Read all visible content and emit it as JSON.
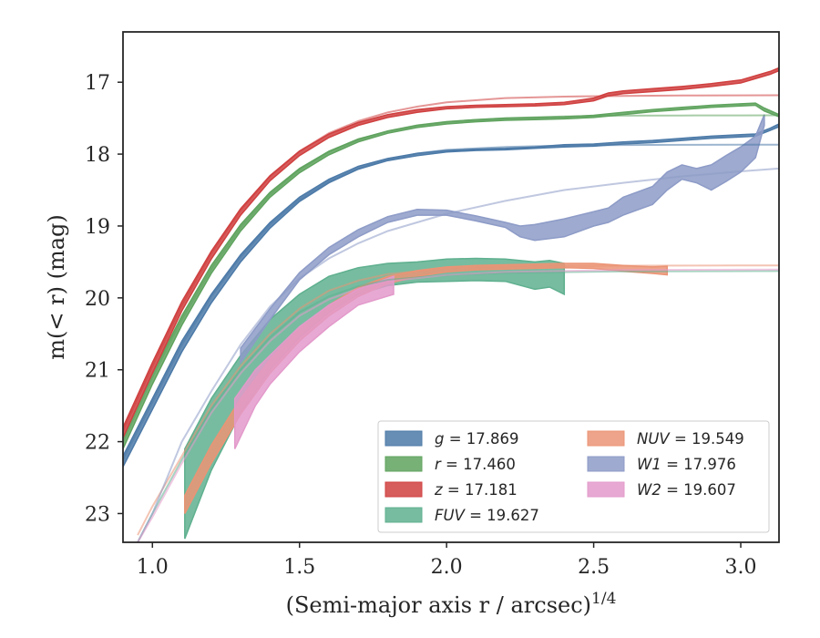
{
  "chart_data": {
    "type": "line",
    "xlabel": "(Semi-major axis r / arcsec)",
    "xlabel_exponent": "1/4",
    "ylabel": "m(< r) (mag)",
    "xlim": [
      0.9,
      3.13
    ],
    "ylim": [
      23.4,
      16.3
    ],
    "y_inverted": true,
    "xticks": [
      1.0,
      1.5,
      2.0,
      2.5,
      3.0
    ],
    "xtick_labels": [
      "1.0",
      "1.5",
      "2.0",
      "2.5",
      "3.0"
    ],
    "yticks": [
      17,
      18,
      19,
      20,
      21,
      22,
      23
    ],
    "ytick_labels": [
      "17",
      "18",
      "19",
      "20",
      "21",
      "22",
      "23"
    ],
    "grid": false,
    "legend_position": "lower-right",
    "legend_columns": 2,
    "series": [
      {
        "name": "g = 17.869",
        "color": "#4c7aa8",
        "band_x": [
          0.9,
          1.0,
          1.1,
          1.2,
          1.3,
          1.4,
          1.5,
          1.6,
          1.7,
          1.8,
          1.9,
          2.0,
          2.1,
          2.2,
          2.3,
          2.4,
          2.5,
          2.6,
          2.7,
          2.8,
          2.9,
          3.0,
          3.05,
          3.1,
          3.13
        ],
        "band_upper": [
          22.2,
          21.4,
          20.6,
          19.95,
          19.4,
          18.95,
          18.6,
          18.35,
          18.17,
          18.06,
          17.99,
          17.95,
          17.93,
          17.92,
          17.9,
          17.87,
          17.86,
          17.83,
          17.81,
          17.78,
          17.75,
          17.73,
          17.72,
          17.64,
          17.58
        ],
        "band_lower": [
          22.35,
          21.55,
          20.75,
          20.07,
          19.5,
          19.03,
          18.66,
          18.4,
          18.21,
          18.09,
          18.02,
          17.97,
          17.95,
          17.94,
          17.92,
          17.9,
          17.89,
          17.86,
          17.84,
          17.81,
          17.78,
          17.76,
          17.75,
          17.67,
          17.62
        ],
        "model_x": [
          0.9,
          1.0,
          1.1,
          1.2,
          1.3,
          1.4,
          1.5,
          1.6,
          1.7,
          1.8,
          1.9,
          2.0,
          2.2,
          2.4,
          2.6,
          2.8,
          3.0,
          3.13
        ],
        "model_y": [
          22.25,
          21.45,
          20.65,
          19.98,
          19.43,
          18.98,
          18.63,
          18.38,
          18.2,
          18.08,
          17.99,
          17.94,
          17.9,
          17.88,
          17.874,
          17.871,
          17.87,
          17.869
        ]
      },
      {
        "name": "r = 17.460",
        "color": "#5fa35e",
        "band_x": [
          0.9,
          1.0,
          1.1,
          1.2,
          1.3,
          1.4,
          1.5,
          1.6,
          1.7,
          1.8,
          1.9,
          2.0,
          2.1,
          2.2,
          2.3,
          2.4,
          2.5,
          2.6,
          2.7,
          2.8,
          2.9,
          3.0,
          3.05,
          3.08,
          3.13
        ],
        "band_upper": [
          21.95,
          21.05,
          20.25,
          19.55,
          18.98,
          18.53,
          18.2,
          17.96,
          17.79,
          17.68,
          17.6,
          17.55,
          17.52,
          17.5,
          17.49,
          17.48,
          17.46,
          17.42,
          17.38,
          17.35,
          17.32,
          17.3,
          17.29,
          17.36,
          17.45
        ],
        "band_lower": [
          22.1,
          21.2,
          20.38,
          19.66,
          19.07,
          18.6,
          18.26,
          18.01,
          17.83,
          17.71,
          17.63,
          17.58,
          17.55,
          17.53,
          17.52,
          17.51,
          17.49,
          17.45,
          17.41,
          17.38,
          17.35,
          17.33,
          17.32,
          17.4,
          17.48
        ],
        "model_x": [
          0.9,
          1.0,
          1.1,
          1.2,
          1.3,
          1.4,
          1.5,
          1.6,
          1.7,
          1.8,
          1.9,
          2.0,
          2.2,
          2.4,
          2.6,
          2.8,
          3.0,
          3.13
        ],
        "model_y": [
          22.0,
          21.1,
          20.3,
          19.6,
          19.02,
          18.56,
          18.22,
          17.97,
          17.8,
          17.68,
          17.6,
          17.55,
          17.5,
          17.475,
          17.465,
          17.462,
          17.461,
          17.46
        ]
      },
      {
        "name": "z = 17.181",
        "color": "#d04040",
        "band_x": [
          0.9,
          1.0,
          1.1,
          1.2,
          1.3,
          1.4,
          1.5,
          1.6,
          1.7,
          1.8,
          1.9,
          2.0,
          2.1,
          2.2,
          2.3,
          2.4,
          2.5,
          2.55,
          2.6,
          2.7,
          2.8,
          2.9,
          3.0,
          3.1,
          3.13
        ],
        "band_upper": [
          21.8,
          20.9,
          20.05,
          19.35,
          18.76,
          18.3,
          17.96,
          17.72,
          17.56,
          17.45,
          17.38,
          17.34,
          17.32,
          17.31,
          17.3,
          17.28,
          17.22,
          17.15,
          17.12,
          17.09,
          17.06,
          17.02,
          16.97,
          16.85,
          16.8
        ],
        "band_lower": [
          21.95,
          21.05,
          20.18,
          19.46,
          18.85,
          18.37,
          18.02,
          17.77,
          17.6,
          17.49,
          17.42,
          17.37,
          17.35,
          17.34,
          17.33,
          17.31,
          17.26,
          17.19,
          17.16,
          17.13,
          17.1,
          17.06,
          17.01,
          16.89,
          16.84
        ],
        "model_x": [
          0.9,
          1.0,
          1.1,
          1.2,
          1.3,
          1.4,
          1.5,
          1.6,
          1.7,
          1.8,
          1.9,
          2.0,
          2.2,
          2.4,
          2.6,
          2.8,
          3.0,
          3.13
        ],
        "model_y": [
          21.85,
          20.95,
          20.1,
          19.38,
          18.78,
          18.31,
          17.96,
          17.71,
          17.54,
          17.42,
          17.34,
          17.28,
          17.22,
          17.2,
          17.19,
          17.185,
          17.182,
          17.181
        ]
      },
      {
        "name": "FUV = 19.627",
        "color": "#5fb08f",
        "band_x": [
          1.11,
          1.2,
          1.3,
          1.4,
          1.5,
          1.6,
          1.7,
          1.8,
          1.9,
          2.0,
          2.1,
          2.2,
          2.3,
          2.35,
          2.4
        ],
        "band_upper": [
          22.1,
          21.4,
          20.8,
          20.3,
          19.95,
          19.7,
          19.58,
          19.52,
          19.5,
          19.46,
          19.45,
          19.46,
          19.5,
          19.48,
          19.52
        ],
        "band_lower": [
          23.35,
          22.4,
          21.6,
          21.0,
          20.55,
          20.2,
          19.95,
          19.83,
          19.78,
          19.77,
          19.76,
          19.77,
          19.88,
          19.85,
          19.95
        ],
        "model_x": [
          0.95,
          1.0,
          1.1,
          1.2,
          1.3,
          1.4,
          1.5,
          1.6,
          1.7,
          1.8,
          2.0,
          2.2,
          2.6,
          3.0,
          3.13
        ],
        "model_y": [
          23.4,
          23.0,
          22.25,
          21.55,
          21.0,
          20.55,
          20.2,
          19.98,
          19.84,
          19.75,
          19.68,
          19.65,
          19.632,
          19.628,
          19.627
        ]
      },
      {
        "name": "NUV = 19.549",
        "color": "#eb9475",
        "band_x": [
          1.11,
          1.2,
          1.3,
          1.4,
          1.5,
          1.6,
          1.7,
          1.8,
          1.9,
          2.0,
          2.1,
          2.2,
          2.3,
          2.4,
          2.5,
          2.6,
          2.7,
          2.75
        ],
        "band_upper": [
          22.75,
          22.05,
          21.4,
          20.85,
          20.42,
          20.1,
          19.85,
          19.7,
          19.62,
          19.57,
          19.55,
          19.54,
          19.53,
          19.52,
          19.52,
          19.55,
          19.57,
          19.56
        ],
        "band_lower": [
          23.0,
          22.3,
          21.62,
          21.05,
          20.6,
          20.25,
          19.98,
          19.8,
          19.7,
          19.64,
          19.61,
          19.6,
          19.59,
          19.58,
          19.59,
          19.63,
          19.66,
          19.68
        ],
        "model_x": [
          0.95,
          1.0,
          1.1,
          1.2,
          1.3,
          1.4,
          1.5,
          1.6,
          1.7,
          1.8,
          2.0,
          2.2,
          2.6,
          3.0,
          3.13
        ],
        "model_y": [
          23.3,
          22.9,
          22.2,
          21.5,
          20.95,
          20.5,
          20.15,
          19.9,
          19.76,
          19.67,
          19.59,
          19.565,
          19.552,
          19.549,
          19.549
        ]
      },
      {
        "name": "W1 = 17.976",
        "color": "#8d9bc7",
        "band_x": [
          1.3,
          1.4,
          1.5,
          1.6,
          1.7,
          1.8,
          1.9,
          2.0,
          2.1,
          2.2,
          2.25,
          2.3,
          2.4,
          2.5,
          2.55,
          2.6,
          2.7,
          2.75,
          2.8,
          2.85,
          2.9,
          2.95,
          3.0,
          3.05,
          3.08
        ],
        "band_upper": [
          20.7,
          20.15,
          19.65,
          19.3,
          19.05,
          18.87,
          18.77,
          18.78,
          18.86,
          18.95,
          19.0,
          18.98,
          18.9,
          18.8,
          18.75,
          18.6,
          18.45,
          18.25,
          18.15,
          18.2,
          18.15,
          18.02,
          17.9,
          17.75,
          17.45
        ],
        "band_lower": [
          20.9,
          20.3,
          19.75,
          19.4,
          19.15,
          18.95,
          18.85,
          18.85,
          18.93,
          19.02,
          19.15,
          19.2,
          19.15,
          19.0,
          18.95,
          18.85,
          18.7,
          18.5,
          18.35,
          18.4,
          18.5,
          18.38,
          18.25,
          18.05,
          17.6
        ],
        "model_x": [
          0.95,
          1.0,
          1.1,
          1.2,
          1.3,
          1.4,
          1.5,
          1.6,
          1.7,
          1.8,
          2.0,
          2.2,
          2.4,
          2.6,
          2.8,
          3.0,
          3.13
        ],
        "model_y": [
          23.4,
          23.0,
          22.0,
          21.3,
          20.65,
          20.12,
          19.73,
          19.45,
          19.24,
          19.07,
          18.83,
          18.65,
          18.5,
          18.4,
          18.31,
          18.24,
          18.2
        ]
      },
      {
        "name": "W2 = 19.607",
        "color": "#e39acb",
        "band_x": [
          1.28,
          1.35,
          1.4,
          1.5,
          1.6,
          1.7,
          1.82
        ],
        "band_upper": [
          21.4,
          21.0,
          20.8,
          20.4,
          20.1,
          19.88,
          19.7
        ],
        "band_lower": [
          22.1,
          21.5,
          21.2,
          20.75,
          20.4,
          20.1,
          19.95
        ],
        "model_x": [
          0.95,
          1.0,
          1.1,
          1.2,
          1.3,
          1.4,
          1.5,
          1.6,
          1.7,
          1.8,
          2.0,
          2.2,
          2.6,
          3.0,
          3.13
        ],
        "model_y": [
          23.4,
          23.05,
          22.3,
          21.6,
          21.05,
          20.6,
          20.25,
          20.02,
          19.87,
          19.77,
          19.68,
          19.64,
          19.612,
          19.608,
          19.607
        ]
      }
    ]
  }
}
